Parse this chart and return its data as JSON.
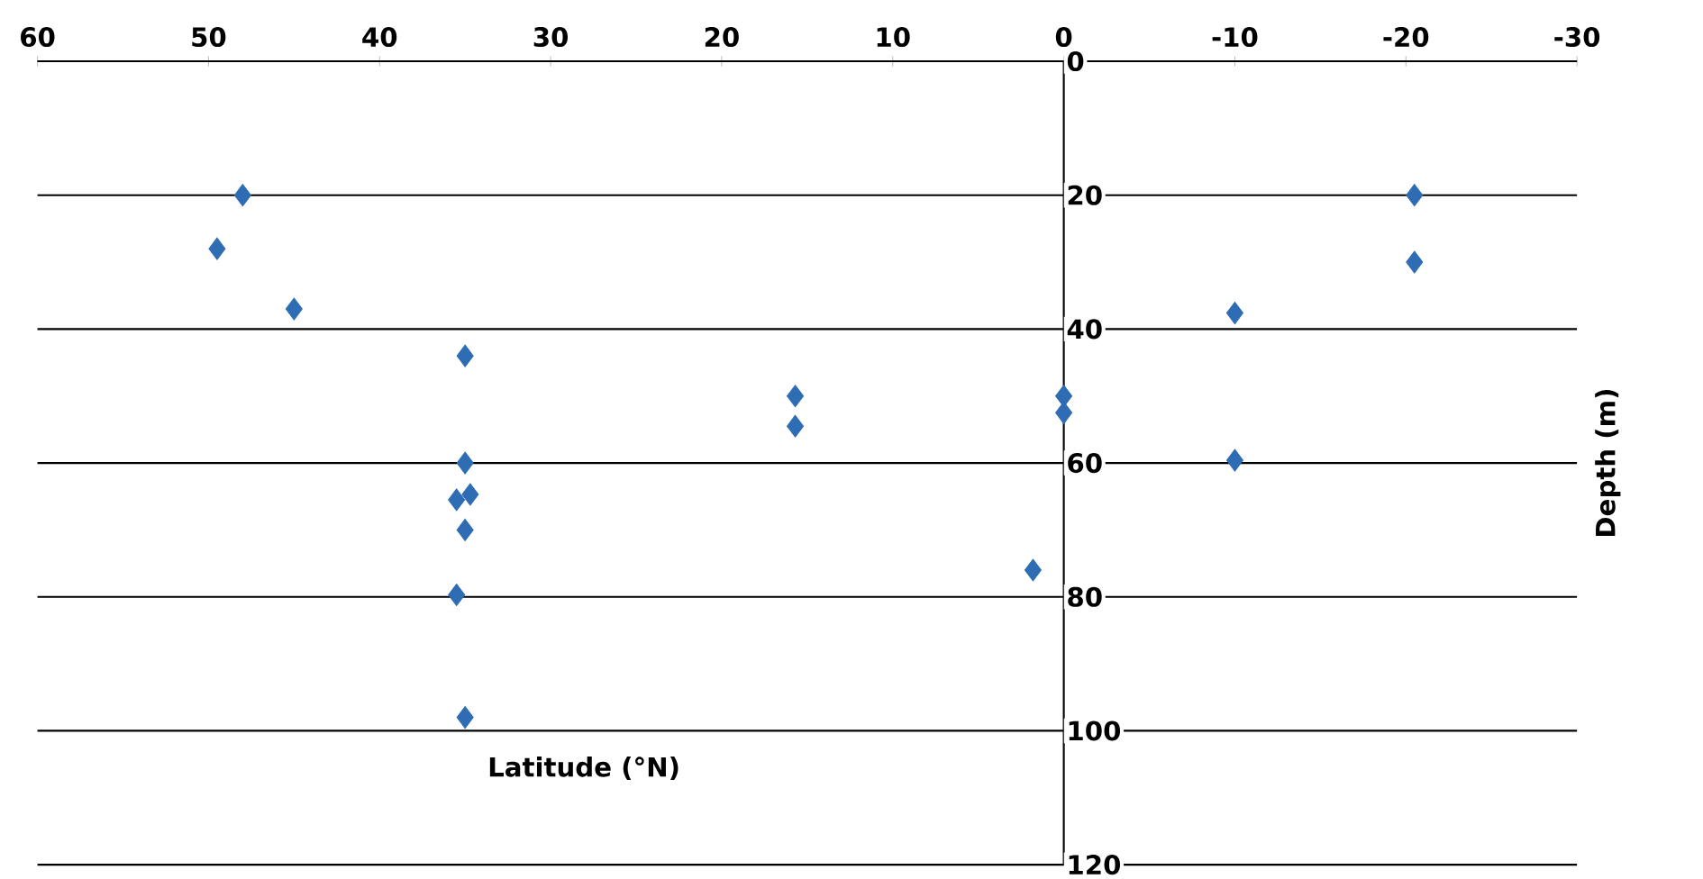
{
  "chart_data": {
    "type": "scatter",
    "xlabel": "Latitude (°N)",
    "ylabel": "Depth (m)",
    "color": "#2e6db4",
    "marker": "diamond",
    "grid": "y",
    "x": [
      48,
      49.5,
      45,
      35,
      15.7,
      15.7,
      0,
      0,
      -20.5,
      -20.5,
      -10,
      -10,
      35,
      35.5,
      34.7,
      35,
      35.5,
      1.8,
      35
    ],
    "values": [
      20,
      28,
      37,
      44,
      50,
      54.5,
      50,
      52.5,
      20,
      30,
      37.6,
      59.6,
      60,
      65.5,
      64.7,
      70,
      79.7,
      76,
      98
    ],
    "xlim": [
      60,
      -30
    ],
    "ylim": [
      120,
      0
    ],
    "xticks": [
      60,
      50,
      40,
      30,
      20,
      10,
      0,
      -10,
      -20,
      -30
    ],
    "yticks": [
      0,
      20,
      40,
      60,
      80,
      100,
      120
    ]
  }
}
